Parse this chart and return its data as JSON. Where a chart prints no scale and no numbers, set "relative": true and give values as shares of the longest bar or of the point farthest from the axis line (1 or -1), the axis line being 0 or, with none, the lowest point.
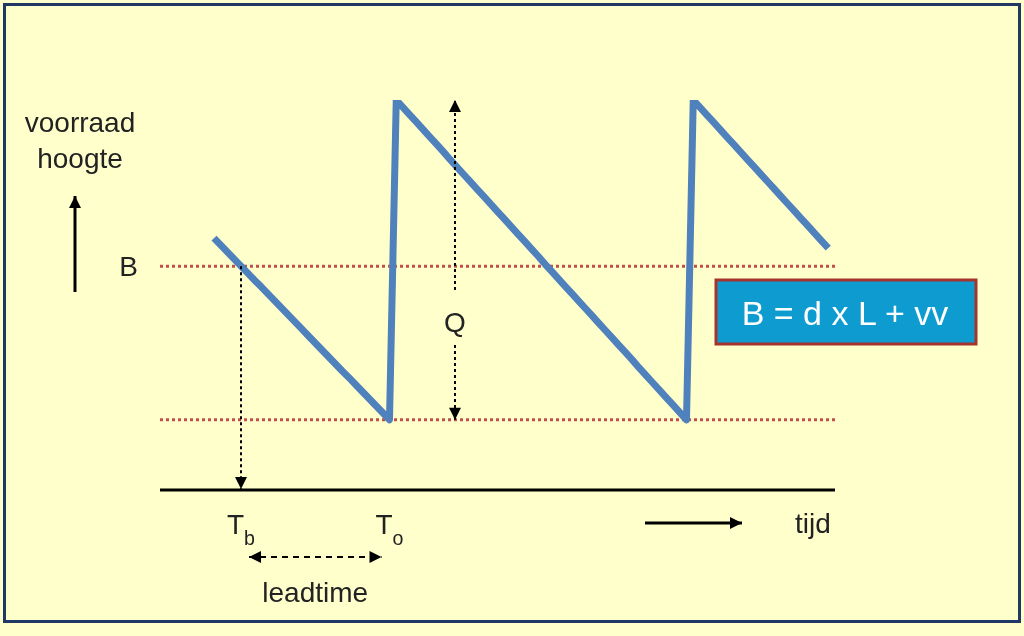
{
  "chart_data": {
    "type": "line",
    "relative": true,
    "ylabel": "voorraad hoogte",
    "xlabel": "tijd",
    "tick_labels": "x",
    "categories": [
      null,
      null,
      null,
      null,
      null,
      null,
      null,
      null,
      null,
      null,
      null,
      null,
      "T$_{b}$",
      null,
      null,
      null,
      null,
      null,
      null,
      null,
      null,
      null,
      null,
      null,
      null,
      null,
      null,
      null,
      null,
      null,
      null,
      null,
      null,
      null,
      "T$_{o}$",
      null,
      null,
      null,
      null,
      null,
      null,
      null,
      null,
      null,
      null,
      null,
      null,
      null,
      null,
      null,
      null,
      null,
      null,
      null,
      null,
      null,
      null,
      null,
      null,
      null,
      null,
      null,
      null,
      null,
      null,
      null,
      null,
      null,
      null,
      null,
      null,
      null,
      null,
      null,
      null,
      null,
      null,
      null,
      null,
      null,
      null,
      null,
      null,
      null,
      null,
      null,
      null,
      null,
      null,
      null,
      null,
      null,
      null,
      null,
      null,
      null,
      null,
      null,
      null,
      null,
      null
    ],
    "series": [
      {
        "color": "#4f81bd",
        "values": [
          null,
          null,
          null,
          null,
          null,
          null,
          null,
          null,
          0.646,
          0.628,
          0.61,
          0.592,
          0.574,
          0.556,
          0.538,
          0.521,
          0.503,
          0.485,
          0.467,
          0.449,
          0.431,
          0.413,
          0.395,
          0.377,
          0.359,
          0.341,
          0.323,
          0.305,
          0.288,
          0.27,
          0.252,
          0.234,
          0.216,
          0.198,
          0.18,
          1,
          0.981,
          0.962,
          0.943,
          0.924,
          0.905,
          0.886,
          0.867,
          0.847,
          0.828,
          0.809,
          0.79,
          0.771,
          0.752,
          0.733,
          0.714,
          0.695,
          0.676,
          0.657,
          0.638,
          0.619,
          0.6,
          0.58,
          0.561,
          0.542,
          0.523,
          0.504,
          0.485,
          0.466,
          0.447,
          0.428,
          0.409,
          0.39,
          0.371,
          0.352,
          0.333,
          0.313,
          0.294,
          0.275,
          0.256,
          0.237,
          0.218,
          0.199,
          0.18,
          1,
          0.981,
          0.962,
          0.943,
          0.924,
          0.905,
          0.886,
          0.867,
          0.848,
          0.829,
          0.81,
          0.791,
          0.772,
          0.753,
          0.734,
          0.715,
          0.696,
          0.677,
          0.658,
          0.639,
          0.62,
          null
        ]
      }
    ],
    "ref_lines": [
      {
        "axis": "y",
        "value": 0.574,
        "label": "B",
        "color": "#c0504d",
        "line_style": "dotted"
      },
      {
        "axis": "y",
        "value": 0.18,
        "color": "#c0504d",
        "line_style": "dotted"
      }
    ],
    "annotations": [
      "Q",
      "leadtime",
      "B = d x L + vv"
    ],
    "marker": "none",
    "line_style": "solid",
    "grid": false,
    "legend": false
  }
}
